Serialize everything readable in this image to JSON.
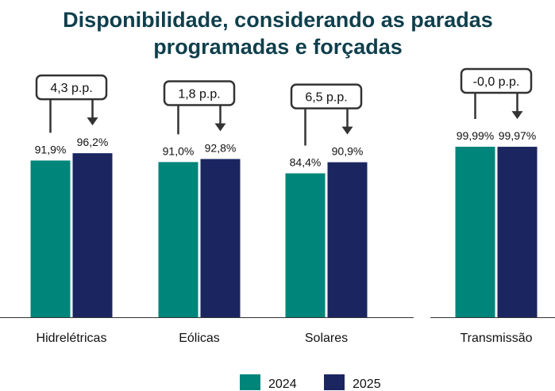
{
  "chart_data": {
    "type": "bar",
    "title": "Disponibilidade, considerando as paradas programadas e forçadas",
    "categories": [
      "Hidrelétricas",
      "Eólicas",
      "Solares",
      "Transmissão"
    ],
    "series": [
      {
        "name": "2024",
        "color": "#00857a",
        "values": [
          91.9,
          91.0,
          84.4,
          99.99
        ],
        "value_labels": [
          "91,9%",
          "91,0%",
          "84,4%",
          "99,99%"
        ]
      },
      {
        "name": "2025",
        "color": "#1b2660",
        "values": [
          96.2,
          92.8,
          90.9,
          99.97
        ],
        "value_labels": [
          "96,2%",
          "92,8%",
          "90,9%",
          "99,97%"
        ]
      }
    ],
    "annotations": [
      "4,3 p.p.",
      "1,8 p.p.",
      "6,5 p.p.",
      "-0,0 p.p."
    ],
    "ylim": [
      0,
      100
    ]
  }
}
